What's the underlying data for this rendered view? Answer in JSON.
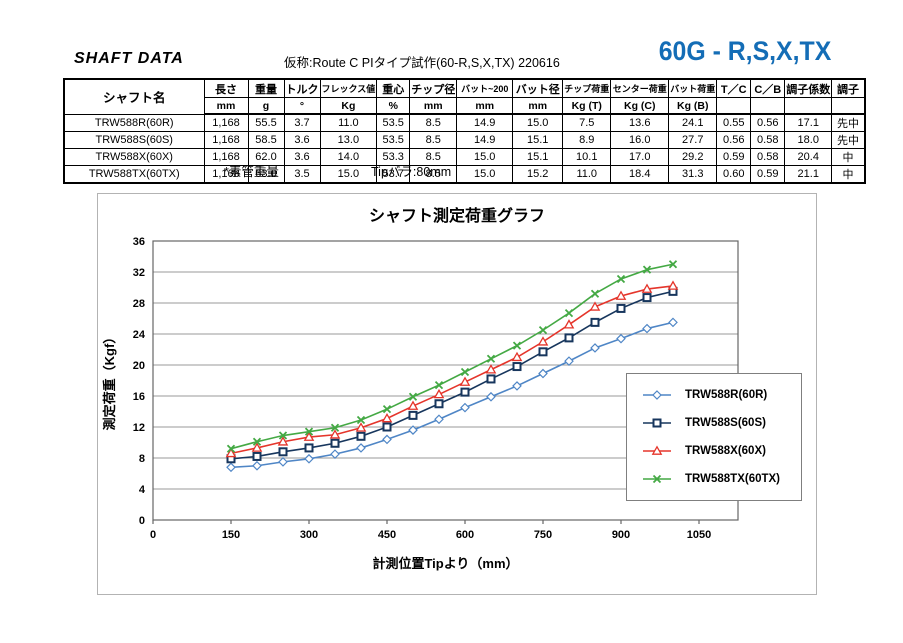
{
  "header": {
    "doc_title": "SHAFT DATA",
    "subtitle": "仮称:Route C PIタイプ試作(60-R,S,X,TX)    220616",
    "product_title": "60G - R,S,X,TX",
    "product_title_color": "#146db6"
  },
  "table": {
    "name_header": "シャフト名",
    "columns": [
      {
        "label": "長さ",
        "unit": "mm"
      },
      {
        "label": "重量",
        "unit": "g"
      },
      {
        "label": "トルク",
        "unit": "°"
      },
      {
        "label": "フレックス値",
        "unit": "Kg"
      },
      {
        "label": "重心",
        "unit": "%"
      },
      {
        "label": "チップ径",
        "unit": "mm"
      },
      {
        "label": "バット~200",
        "unit": "mm"
      },
      {
        "label": "バット径",
        "unit": "mm"
      },
      {
        "label": "チップ荷重",
        "unit": "Kg (T)"
      },
      {
        "label": "センター荷重",
        "unit": "Kg (C)"
      },
      {
        "label": "バット荷重",
        "unit": "Kg (B)"
      },
      {
        "label": "T／C",
        "unit": ""
      },
      {
        "label": "C／B",
        "unit": ""
      },
      {
        "label": "調子係数",
        "unit": ""
      },
      {
        "label": "調子",
        "unit": ""
      }
    ],
    "rows": [
      {
        "name": "TRW588R(60R)",
        "values": [
          "1,168",
          "55.5",
          "3.7",
          "11.0",
          "53.5",
          "8.5",
          "14.9",
          "15.0",
          "7.5",
          "13.6",
          "24.1",
          "0.55",
          "0.56",
          "17.1",
          "先中"
        ]
      },
      {
        "name": "TRW588S(60S)",
        "values": [
          "1,168",
          "58.5",
          "3.6",
          "13.0",
          "53.5",
          "8.5",
          "14.9",
          "15.1",
          "8.9",
          "16.0",
          "27.7",
          "0.56",
          "0.58",
          "18.0",
          "先中"
        ]
      },
      {
        "name": "TRW588X(60X)",
        "values": [
          "1,168",
          "62.0",
          "3.6",
          "14.0",
          "53.3",
          "8.5",
          "15.0",
          "15.1",
          "10.1",
          "17.0",
          "29.2",
          "0.59",
          "0.58",
          "20.4",
          "中"
        ]
      },
      {
        "name": "TRW588TX(60TX)",
        "values": [
          "1,168",
          "63.0",
          "3.5",
          "15.0",
          "53.7",
          "8.5",
          "15.0",
          "15.2",
          "11.0",
          "18.4",
          "31.3",
          "0.60",
          "0.59",
          "21.1",
          "中"
        ]
      }
    ],
    "footnote_weight": "*素管重量",
    "footnote_tip": "Tipバラ:80mm"
  },
  "chart_data": {
    "type": "line",
    "title": "シャフト測定荷重グラフ",
    "xlabel": "計測位置Tipより（mm）",
    "ylabel": "測定荷重（Kgf）",
    "xlim": [
      0,
      1125
    ],
    "ylim": [
      0,
      36
    ],
    "x_ticks": [
      0,
      150,
      300,
      450,
      600,
      750,
      900,
      1050
    ],
    "y_ticks": [
      0,
      4,
      8,
      12,
      16,
      20,
      24,
      28,
      32,
      36
    ],
    "grid": "horizontal",
    "legend_position": "inside-right",
    "x": [
      150,
      200,
      250,
      300,
      350,
      400,
      450,
      500,
      550,
      600,
      650,
      700,
      750,
      800,
      850,
      900,
      950,
      1000
    ],
    "series": [
      {
        "name": "TRW588R(60R)",
        "color": "#4f86c6",
        "marker": "diamond",
        "values": [
          6.8,
          7.0,
          7.5,
          7.9,
          8.5,
          9.3,
          10.4,
          11.6,
          13.0,
          14.5,
          15.9,
          17.3,
          18.9,
          20.5,
          22.2,
          23.4,
          24.7,
          25.5
        ]
      },
      {
        "name": "TRW588S(60S)",
        "color": "#17365d",
        "marker": "square",
        "values": [
          7.9,
          8.2,
          8.8,
          9.3,
          9.9,
          10.8,
          12.0,
          13.5,
          15.0,
          16.5,
          18.2,
          19.8,
          21.7,
          23.5,
          25.5,
          27.3,
          28.7,
          29.5
        ]
      },
      {
        "name": "TRW588X(60X)",
        "color": "#e5352b",
        "marker": "triangle",
        "values": [
          8.6,
          9.3,
          10.1,
          10.7,
          11.0,
          11.9,
          13.1,
          14.7,
          16.2,
          17.8,
          19.4,
          21.0,
          23.0,
          25.2,
          27.5,
          28.9,
          29.8,
          30.2
        ]
      },
      {
        "name": "TRW588TX(60TX)",
        "color": "#44a944",
        "marker": "x",
        "values": [
          9.2,
          10.1,
          10.9,
          11.4,
          11.9,
          12.9,
          14.3,
          15.9,
          17.4,
          19.1,
          20.8,
          22.5,
          24.5,
          26.7,
          29.2,
          31.1,
          32.3,
          33.0
        ]
      }
    ]
  }
}
